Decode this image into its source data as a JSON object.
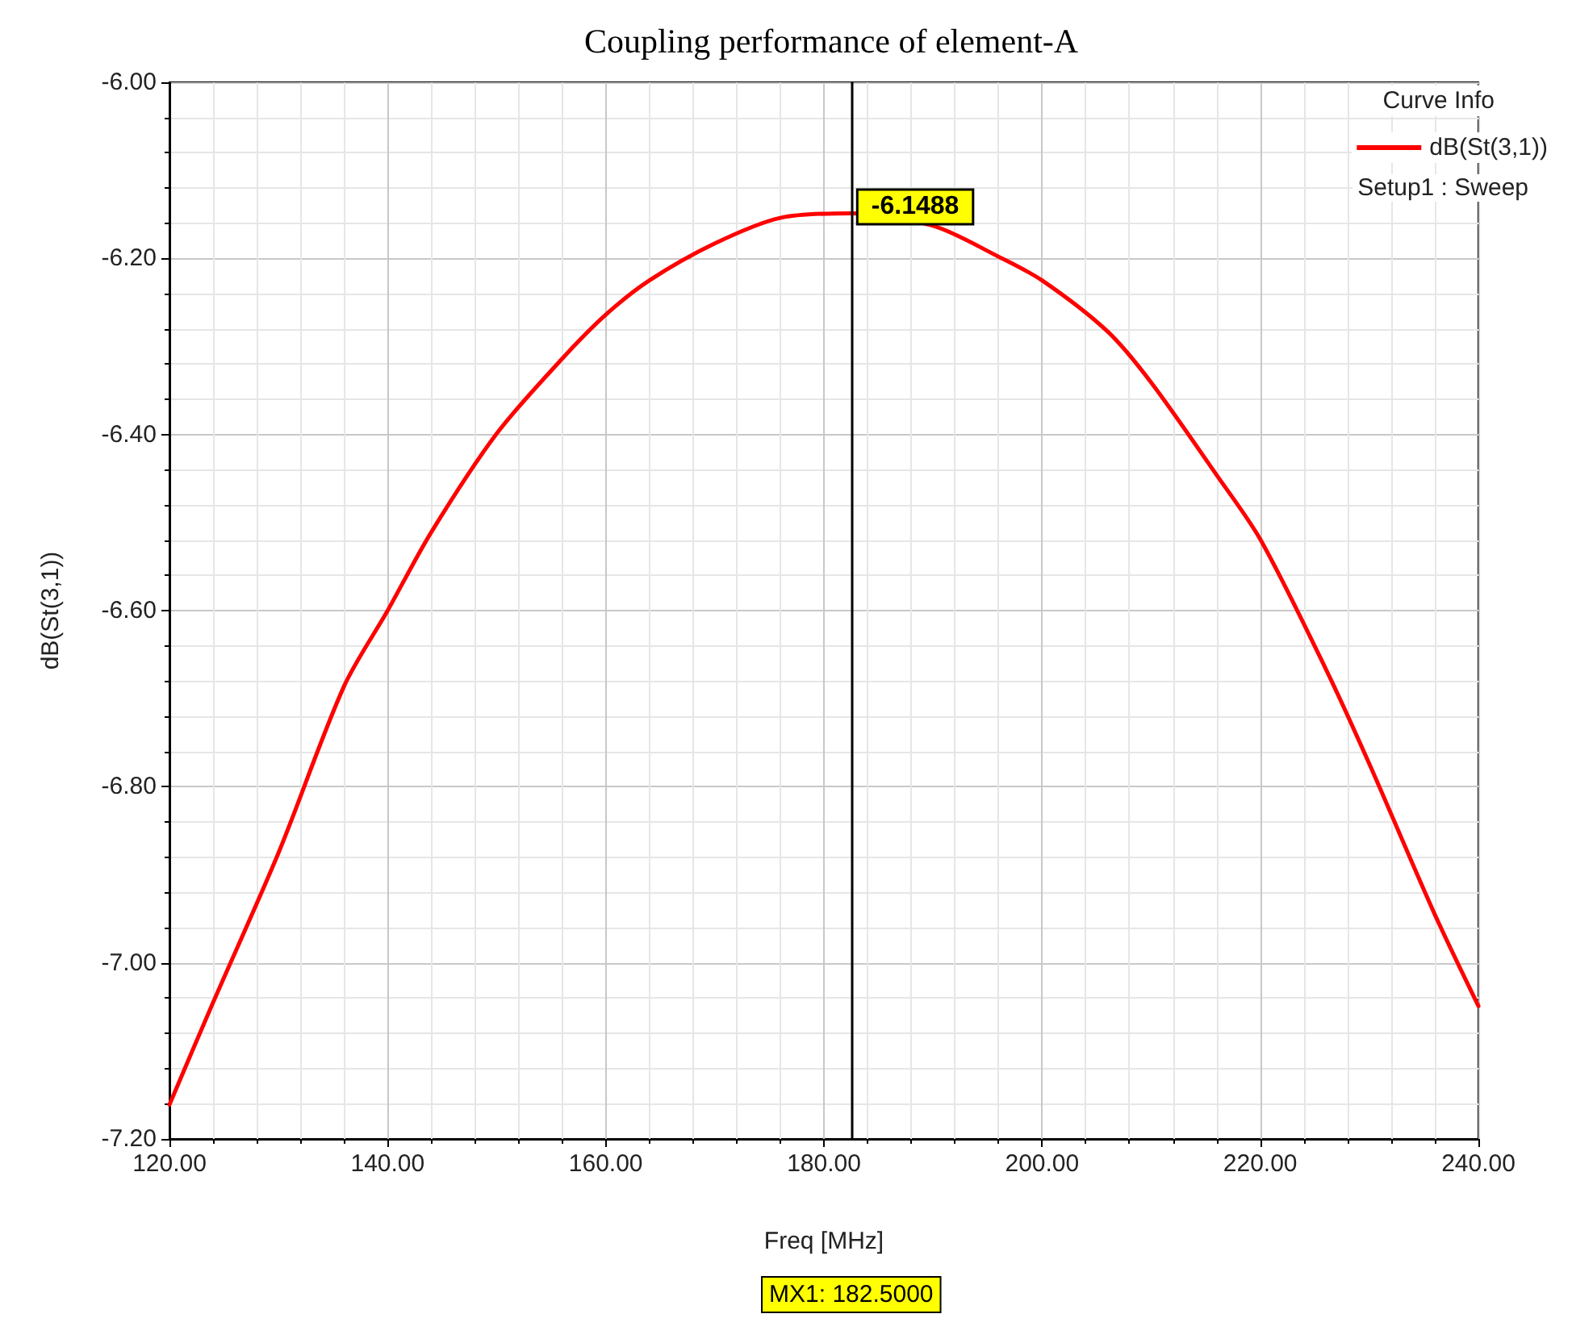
{
  "chart_data": {
    "type": "line",
    "title": "Coupling performance of element-A",
    "xlabel": "Freq [MHz]",
    "ylabel": "dB(St(3,1))",
    "legend_title": "Curve Info",
    "legend": "top right",
    "grid": true,
    "marker": "none",
    "line_style": "solid",
    "x": [
      120,
      124,
      130,
      136,
      140,
      144,
      150,
      156,
      160,
      164,
      170,
      176,
      182.5,
      190,
      196,
      200,
      206,
      210,
      216,
      220,
      226,
      230,
      236,
      240
    ],
    "series": [
      {
        "name": "dB(St(3,1))",
        "color": "#ff0000",
        "values": [
          -7.161,
          -7.045,
          -6.875,
          -6.686,
          -6.6,
          -6.511,
          -6.399,
          -6.314,
          -6.264,
          -6.225,
          -6.183,
          -6.154,
          -6.1488,
          -6.163,
          -6.198,
          -6.225,
          -6.283,
          -6.341,
          -6.446,
          -6.519,
          -6.666,
          -6.774,
          -6.945,
          -7.049
        ]
      }
    ],
    "xlim": [
      120,
      240
    ],
    "xticks": [
      {
        "value": 120,
        "label": "120.00"
      },
      {
        "value": 140,
        "label": "140.00"
      },
      {
        "value": 160,
        "label": "160.00"
      },
      {
        "value": 180,
        "label": "180.00"
      },
      {
        "value": 200,
        "label": "200.00"
      },
      {
        "value": 220,
        "label": "220.00"
      },
      {
        "value": 240,
        "label": "240.00"
      }
    ],
    "ylim": [
      -7.2,
      -6.0
    ],
    "yticks": [
      {
        "value": -7.2,
        "label": "-7.20"
      },
      {
        "value": -7.0,
        "label": "-7.00"
      },
      {
        "value": -6.8,
        "label": "-6.80"
      },
      {
        "value": -6.6,
        "label": "-6.60"
      },
      {
        "value": -6.4,
        "label": "-6.40"
      },
      {
        "value": -6.2,
        "label": "-6.20"
      },
      {
        "value": -6.0,
        "label": "-6.00"
      }
    ],
    "ref_lines": [
      {
        "axis": "x",
        "value": 182.5,
        "label": "MX1: 182.5000",
        "color": "#000000"
      }
    ],
    "annotations": [
      {
        "text": "-6.1488",
        "x": 182.5,
        "y": -6.1488
      },
      "Setup1 : Sweep"
    ]
  }
}
